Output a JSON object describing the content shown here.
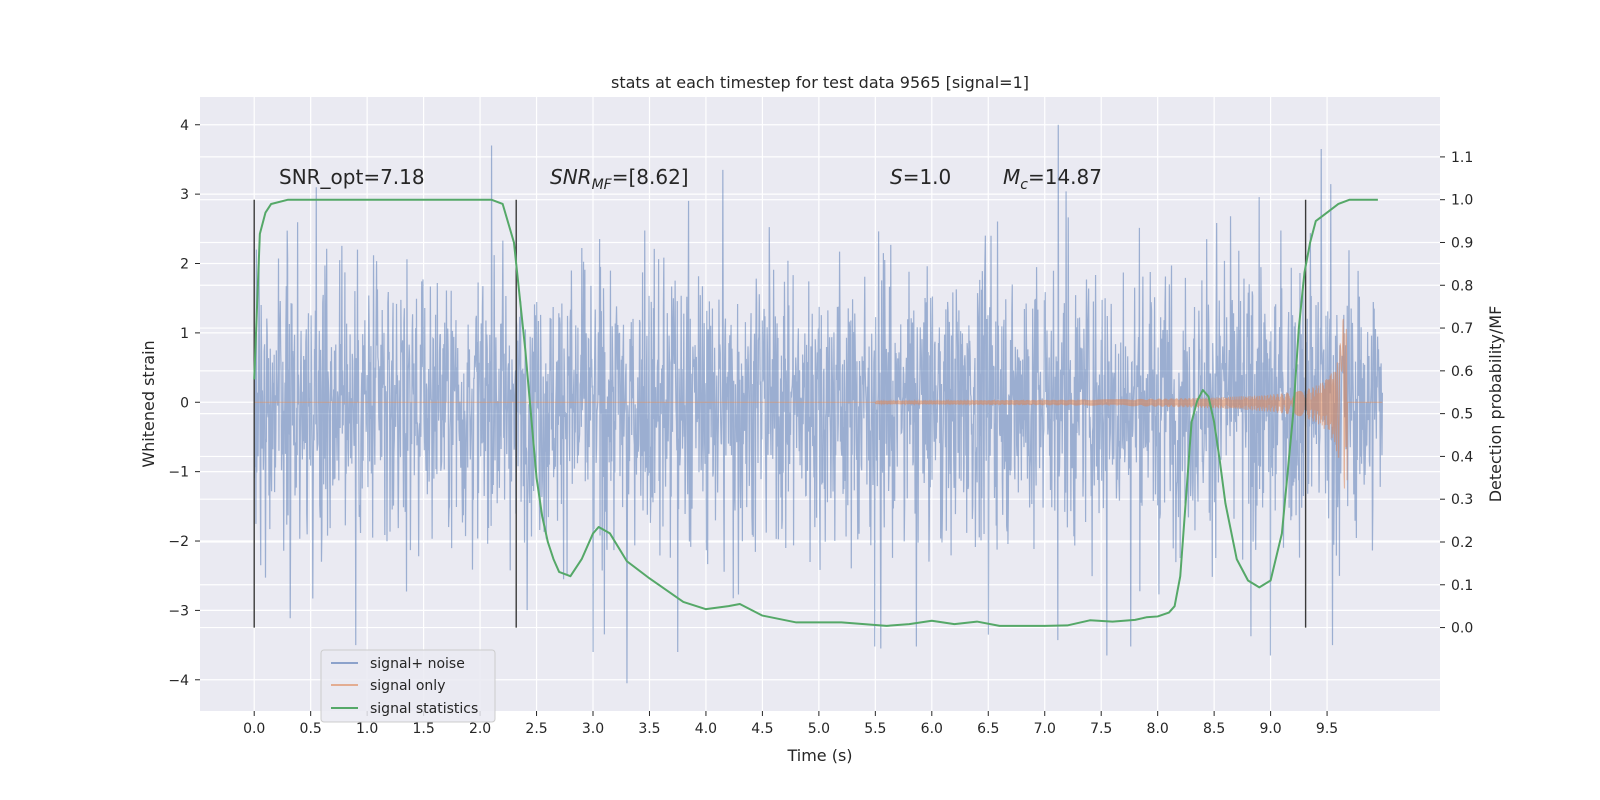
{
  "chart_data": {
    "type": "line",
    "title": "stats at each timestep for test data 9565 [signal=1]",
    "xlabel": "Time (s)",
    "ylabel_left": "Whitened strain",
    "ylabel_right": "Detection probability/MF",
    "xlim": [
      -0.48,
      10.5
    ],
    "ylim_left": [
      -4.45,
      4.4
    ],
    "ylim_right": [
      -0.195,
      1.24
    ],
    "x_ticks": [
      0.0,
      0.5,
      1.0,
      1.5,
      2.0,
      2.5,
      3.0,
      3.5,
      4.0,
      4.5,
      5.0,
      5.5,
      6.0,
      6.5,
      7.0,
      7.5,
      8.0,
      8.5,
      9.0,
      9.5
    ],
    "x_tick_labels": [
      "0.0",
      "0.5",
      "1.0",
      "1.5",
      "2.0",
      "2.5",
      "3.0",
      "3.5",
      "4.0",
      "4.5",
      "5.0",
      "5.5",
      "6.0",
      "6.5",
      "7.0",
      "7.5",
      "8.0",
      "8.5",
      "9.0",
      "9.5"
    ],
    "y_left_ticks": [
      4,
      3,
      2,
      1,
      0,
      -1,
      -2,
      -3,
      -4
    ],
    "y_left_tick_labels": [
      "4",
      "3",
      "2",
      "1",
      "0",
      "−1",
      "−2",
      "−3",
      "−4"
    ],
    "y_right_ticks": [
      1.1,
      1.0,
      0.9,
      0.8,
      0.7,
      0.6,
      0.5,
      0.4,
      0.3,
      0.2,
      0.1,
      0.0
    ],
    "y_right_tick_labels": [
      "1.1",
      "1.0",
      "0.9",
      "0.8",
      "0.7",
      "0.6",
      "0.5",
      "0.4",
      "0.3",
      "0.2",
      "0.1",
      "0.0"
    ],
    "grid": true,
    "legend_position": "lower-left",
    "annotations": {
      "snr_opt": "SNR_opt=7.18",
      "snr_mf_main": "SNR",
      "snr_mf_sub": "MF",
      "snr_mf_rest": "=[8.62]",
      "s_main": "S",
      "s_rest": "=1.0",
      "mc_main": "M",
      "mc_sub": "c",
      "mc_rest": "=14.87"
    },
    "vertical_markers": [
      0.0,
      2.32,
      9.31
    ],
    "series": [
      {
        "name": "signal+ noise",
        "color": "#4c72b0",
        "x_range": [
          0.0,
          9.99
        ],
        "amplitude_typical": 1.25,
        "amplitude_peak": 4.0,
        "peaks": [
          {
            "x": 0.02,
            "y": 2.2
          },
          {
            "x": 0.55,
            "y": 3.1
          },
          {
            "x": 0.9,
            "y": -3.5
          },
          {
            "x": 2.1,
            "y": 3.7
          },
          {
            "x": 3.0,
            "y": -3.6
          },
          {
            "x": 3.3,
            "y": -4.05
          },
          {
            "x": 3.75,
            "y": -3.6
          },
          {
            "x": 4.15,
            "y": 3.35
          },
          {
            "x": 5.55,
            "y": -3.55
          },
          {
            "x": 6.5,
            "y": -3.35
          },
          {
            "x": 7.12,
            "y": 4.0
          },
          {
            "x": 7.55,
            "y": -3.65
          },
          {
            "x": 9.0,
            "y": -3.65
          },
          {
            "x": 9.45,
            "y": 3.65
          },
          {
            "x": 9.55,
            "y": -3.5
          }
        ]
      },
      {
        "name": "signal only",
        "color": "#dd8452",
        "x_range": [
          0.0,
          9.99
        ],
        "chirp_start": 5.5,
        "chirp_peak_time": 9.68,
        "chirp_peak_amp_upper": 1.25,
        "chirp_peak_amp_lower": -1.55
      },
      {
        "name": "signal statistics",
        "color": "#55a868",
        "axis": "right",
        "x": [
          0.0,
          0.05,
          0.1,
          0.15,
          0.3,
          0.6,
          1.0,
          1.5,
          1.8,
          2.0,
          2.1,
          2.2,
          2.3,
          2.4,
          2.5,
          2.55,
          2.6,
          2.65,
          2.7,
          2.8,
          2.9,
          3.0,
          3.05,
          3.15,
          3.3,
          3.5,
          3.8,
          4.0,
          4.2,
          4.3,
          4.5,
          4.8,
          5.2,
          5.6,
          5.8,
          6.0,
          6.2,
          6.4,
          6.6,
          6.8,
          7.0,
          7.2,
          7.4,
          7.6,
          7.8,
          7.9,
          8.0,
          8.1,
          8.15,
          8.2,
          8.25,
          8.3,
          8.35,
          8.4,
          8.45,
          8.5,
          8.55,
          8.6,
          8.7,
          8.8,
          8.9,
          9.0,
          9.1,
          9.2,
          9.25,
          9.3,
          9.35,
          9.4,
          9.5,
          9.6,
          9.7,
          9.8,
          9.9,
          9.95
        ],
        "y": [
          0.58,
          0.92,
          0.97,
          0.99,
          1.0,
          1.0,
          1.0,
          1.0,
          1.0,
          1.0,
          1.0,
          0.99,
          0.9,
          0.65,
          0.35,
          0.26,
          0.2,
          0.16,
          0.13,
          0.12,
          0.16,
          0.22,
          0.235,
          0.22,
          0.155,
          0.115,
          0.06,
          0.043,
          0.05,
          0.055,
          0.028,
          0.012,
          0.012,
          0.004,
          0.008,
          0.016,
          0.008,
          0.014,
          0.004,
          0.004,
          0.004,
          0.005,
          0.017,
          0.014,
          0.018,
          0.024,
          0.026,
          0.035,
          0.05,
          0.12,
          0.3,
          0.48,
          0.53,
          0.555,
          0.54,
          0.48,
          0.39,
          0.29,
          0.16,
          0.11,
          0.094,
          0.11,
          0.22,
          0.5,
          0.7,
          0.83,
          0.9,
          0.95,
          0.97,
          0.99,
          1.0,
          1.0,
          1.0,
          1.0
        ]
      }
    ]
  }
}
